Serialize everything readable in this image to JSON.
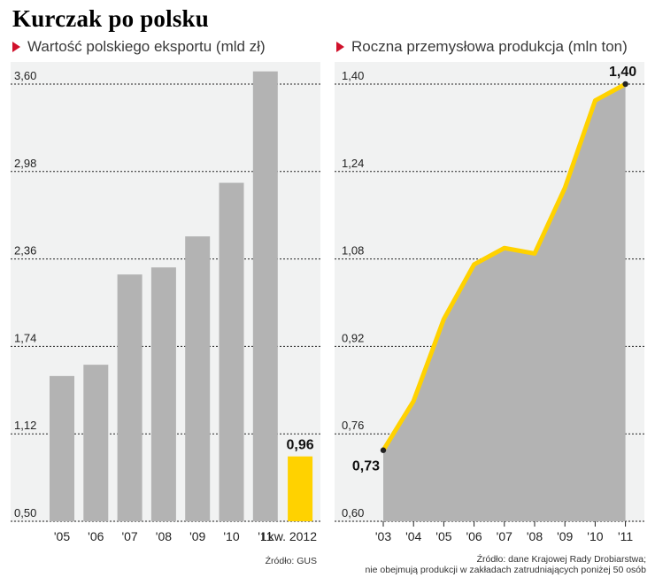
{
  "header": {
    "title": "Kurczak po polsku"
  },
  "chart_data": [
    {
      "type": "bar",
      "title": "Wartość polskiego eksportu (mld zł)",
      "categories": [
        "'05",
        "'06",
        "'07",
        "'08",
        "'09",
        "'10",
        "'11",
        "I kw. 2012"
      ],
      "values": [
        1.53,
        1.61,
        2.25,
        2.3,
        2.52,
        2.9,
        3.69,
        0.96
      ],
      "highlight_index": 7,
      "data_labels": [
        {
          "index": 7,
          "text": "0,96"
        }
      ],
      "yticks": [
        "0,50",
        "1,12",
        "1,74",
        "2,36",
        "2,98",
        "3,60"
      ],
      "ylim": [
        0.5,
        3.6
      ],
      "grid": true,
      "colors": {
        "bar": "#b3b3b3",
        "highlight": "#ffd200",
        "panel": "#f1f2f2"
      },
      "source": "Źródło: GUS"
    },
    {
      "type": "area",
      "title": "Roczna przemysłowa produkcja (mln ton)",
      "categories": [
        "'03",
        "'04",
        "'05",
        "'06",
        "'07",
        "'08",
        "'09",
        "'10",
        "'11"
      ],
      "values": [
        0.73,
        0.82,
        0.97,
        1.07,
        1.1,
        1.09,
        1.21,
        1.37,
        1.4
      ],
      "data_labels": [
        {
          "index": 0,
          "text": "0,73"
        },
        {
          "index": 8,
          "text": "1,40"
        }
      ],
      "yticks": [
        "0,60",
        "0,76",
        "0,92",
        "1,08",
        "1,24",
        "1,40"
      ],
      "ylim": [
        0.6,
        1.4
      ],
      "grid": true,
      "colors": {
        "area": "#b3b3b3",
        "line": "#ffd200",
        "panel": "#f1f2f2"
      },
      "source_lines": [
        "Źródło: dane Krajowej Rady Drobiarstwa;",
        "nie obejmują produkcji w zakładach zatrudniających poniżej 50 osób"
      ]
    }
  ]
}
